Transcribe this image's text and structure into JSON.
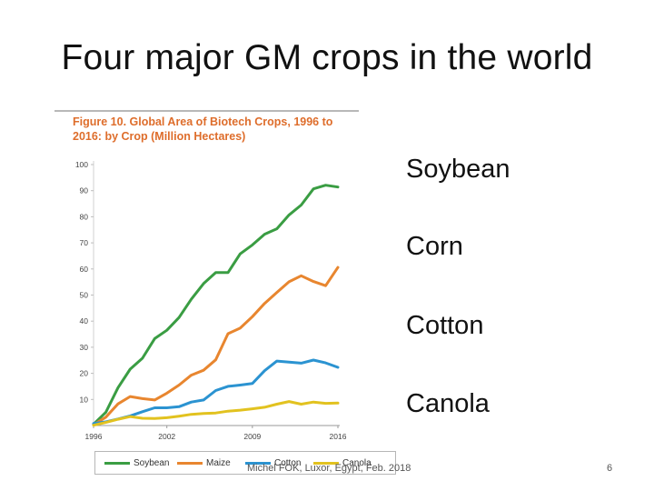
{
  "slide": {
    "title": "Four major GM crops in the world",
    "crop_labels": [
      "Soybean",
      "Corn",
      "Cotton",
      "Canola"
    ],
    "footer": "Michel FOK, Luxor, Egypt, Feb. 2018",
    "page_number": "6"
  },
  "colors": {
    "caption": "#de6d2b",
    "Soybean": "#3a9d43",
    "Maize": "#e8862f",
    "Cotton": "#2b93d1",
    "Canola": "#e2c21f"
  },
  "chart_data": {
    "type": "line",
    "title": "Figure 10. Global Area of Biotech Crops, 1996 to 2016: by Crop (Million Hectares)",
    "xlabel": "",
    "ylabel": "",
    "x": [
      1996,
      1997,
      1998,
      1999,
      2000,
      2001,
      2002,
      2003,
      2004,
      2005,
      2006,
      2007,
      2008,
      2009,
      2010,
      2011,
      2012,
      2013,
      2014,
      2015,
      2016
    ],
    "x_ticks": [
      1996,
      2002,
      2009,
      2016
    ],
    "y_ticks": [
      10,
      20,
      30,
      40,
      50,
      60,
      70,
      80,
      90,
      100
    ],
    "xlim": [
      1996,
      2016
    ],
    "ylim": [
      0,
      100
    ],
    "grid": false,
    "legend": "bottom",
    "series": [
      {
        "name": "Soybean",
        "values": [
          0.5,
          5.1,
          14.5,
          21.6,
          25.8,
          33.3,
          36.5,
          41.4,
          48.4,
          54.4,
          58.6,
          58.6,
          65.8,
          69.2,
          73.3,
          75.4,
          80.7,
          84.5,
          90.7,
          92.1,
          91.4
        ]
      },
      {
        "name": "Maize",
        "values": [
          0.3,
          3.2,
          8.3,
          11.1,
          10.3,
          9.8,
          12.4,
          15.5,
          19.3,
          21.2,
          25.2,
          35.2,
          37.3,
          41.7,
          46.8,
          51.0,
          55.1,
          57.4,
          55.2,
          53.6,
          60.6
        ]
      },
      {
        "name": "Cotton",
        "values": [
          0.8,
          1.4,
          2.5,
          3.7,
          5.3,
          6.8,
          6.8,
          7.2,
          9.0,
          9.8,
          13.4,
          15.0,
          15.5,
          16.1,
          21.0,
          24.7,
          24.3,
          23.9,
          25.1,
          24.0,
          22.3
        ]
      },
      {
        "name": "Canola",
        "values": [
          0.1,
          1.2,
          2.4,
          3.4,
          2.8,
          2.7,
          3.0,
          3.6,
          4.3,
          4.6,
          4.8,
          5.5,
          5.9,
          6.4,
          7.0,
          8.2,
          9.2,
          8.2,
          9.0,
          8.5,
          8.6
        ]
      }
    ],
    "legend_entries": [
      "Soybean",
      "Maize",
      "Cotton",
      "Canola"
    ]
  }
}
